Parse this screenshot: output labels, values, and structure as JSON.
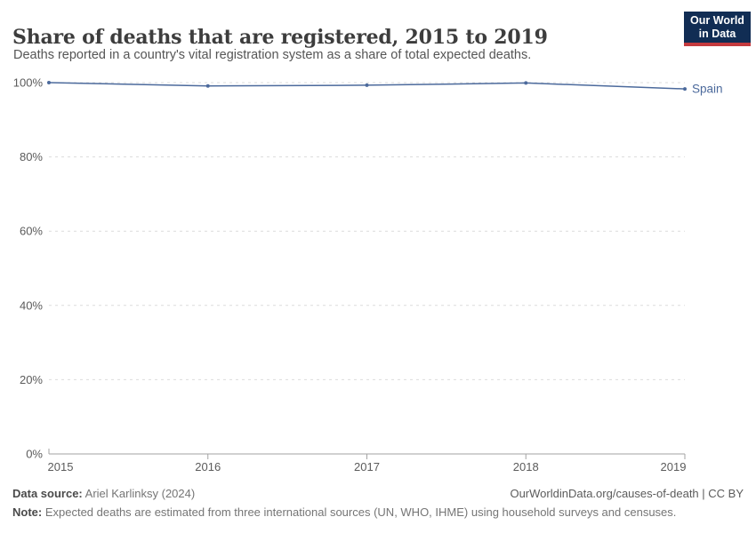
{
  "header": {
    "title": "Share of deaths that are registered, 2015 to 2019",
    "subtitle": "Deaths reported in a country's vital registration system as a share of total expected deaths.",
    "logo": {
      "line1": "Our World",
      "line2": "in Data"
    }
  },
  "chart_data": {
    "type": "line",
    "title": "Share of deaths that are registered, 2015 to 2019",
    "x": [
      2015,
      2016,
      2017,
      2018,
      2019
    ],
    "xtick_labels": [
      "2015",
      "2016",
      "2017",
      "2018",
      "2019"
    ],
    "series": [
      {
        "name": "Spain",
        "values": [
          100,
          99.1,
          99.3,
          99.9,
          98.3
        ],
        "color": "#4c6a9c"
      }
    ],
    "ylim": [
      0,
      100
    ],
    "yticks": [
      0,
      20,
      40,
      60,
      80,
      100
    ],
    "ytick_labels": [
      "0%",
      "20%",
      "40%",
      "60%",
      "80%",
      "100%"
    ],
    "grid": "horizontal-dashed",
    "legend_position": "end-of-line-label",
    "unit": "%"
  },
  "footer": {
    "datasource_label": "Data source:",
    "datasource_value": " Ariel Karlinksy (2024)",
    "attribution": "OurWorldinData.org/causes-of-death | CC BY",
    "note_label": "Note:",
    "note_value": " Expected deaths are estimated from three international sources (UN, WHO, IHME) using household surveys and censuses."
  },
  "colors": {
    "line": "#4c6a9c",
    "grid": "#dcdcdc",
    "axis": "#a3a3a3",
    "tick_label": "#5b5b5b",
    "title": "#3d3d3d",
    "logo_bg": "#112d54",
    "logo_stripe": "#c43a3e"
  }
}
